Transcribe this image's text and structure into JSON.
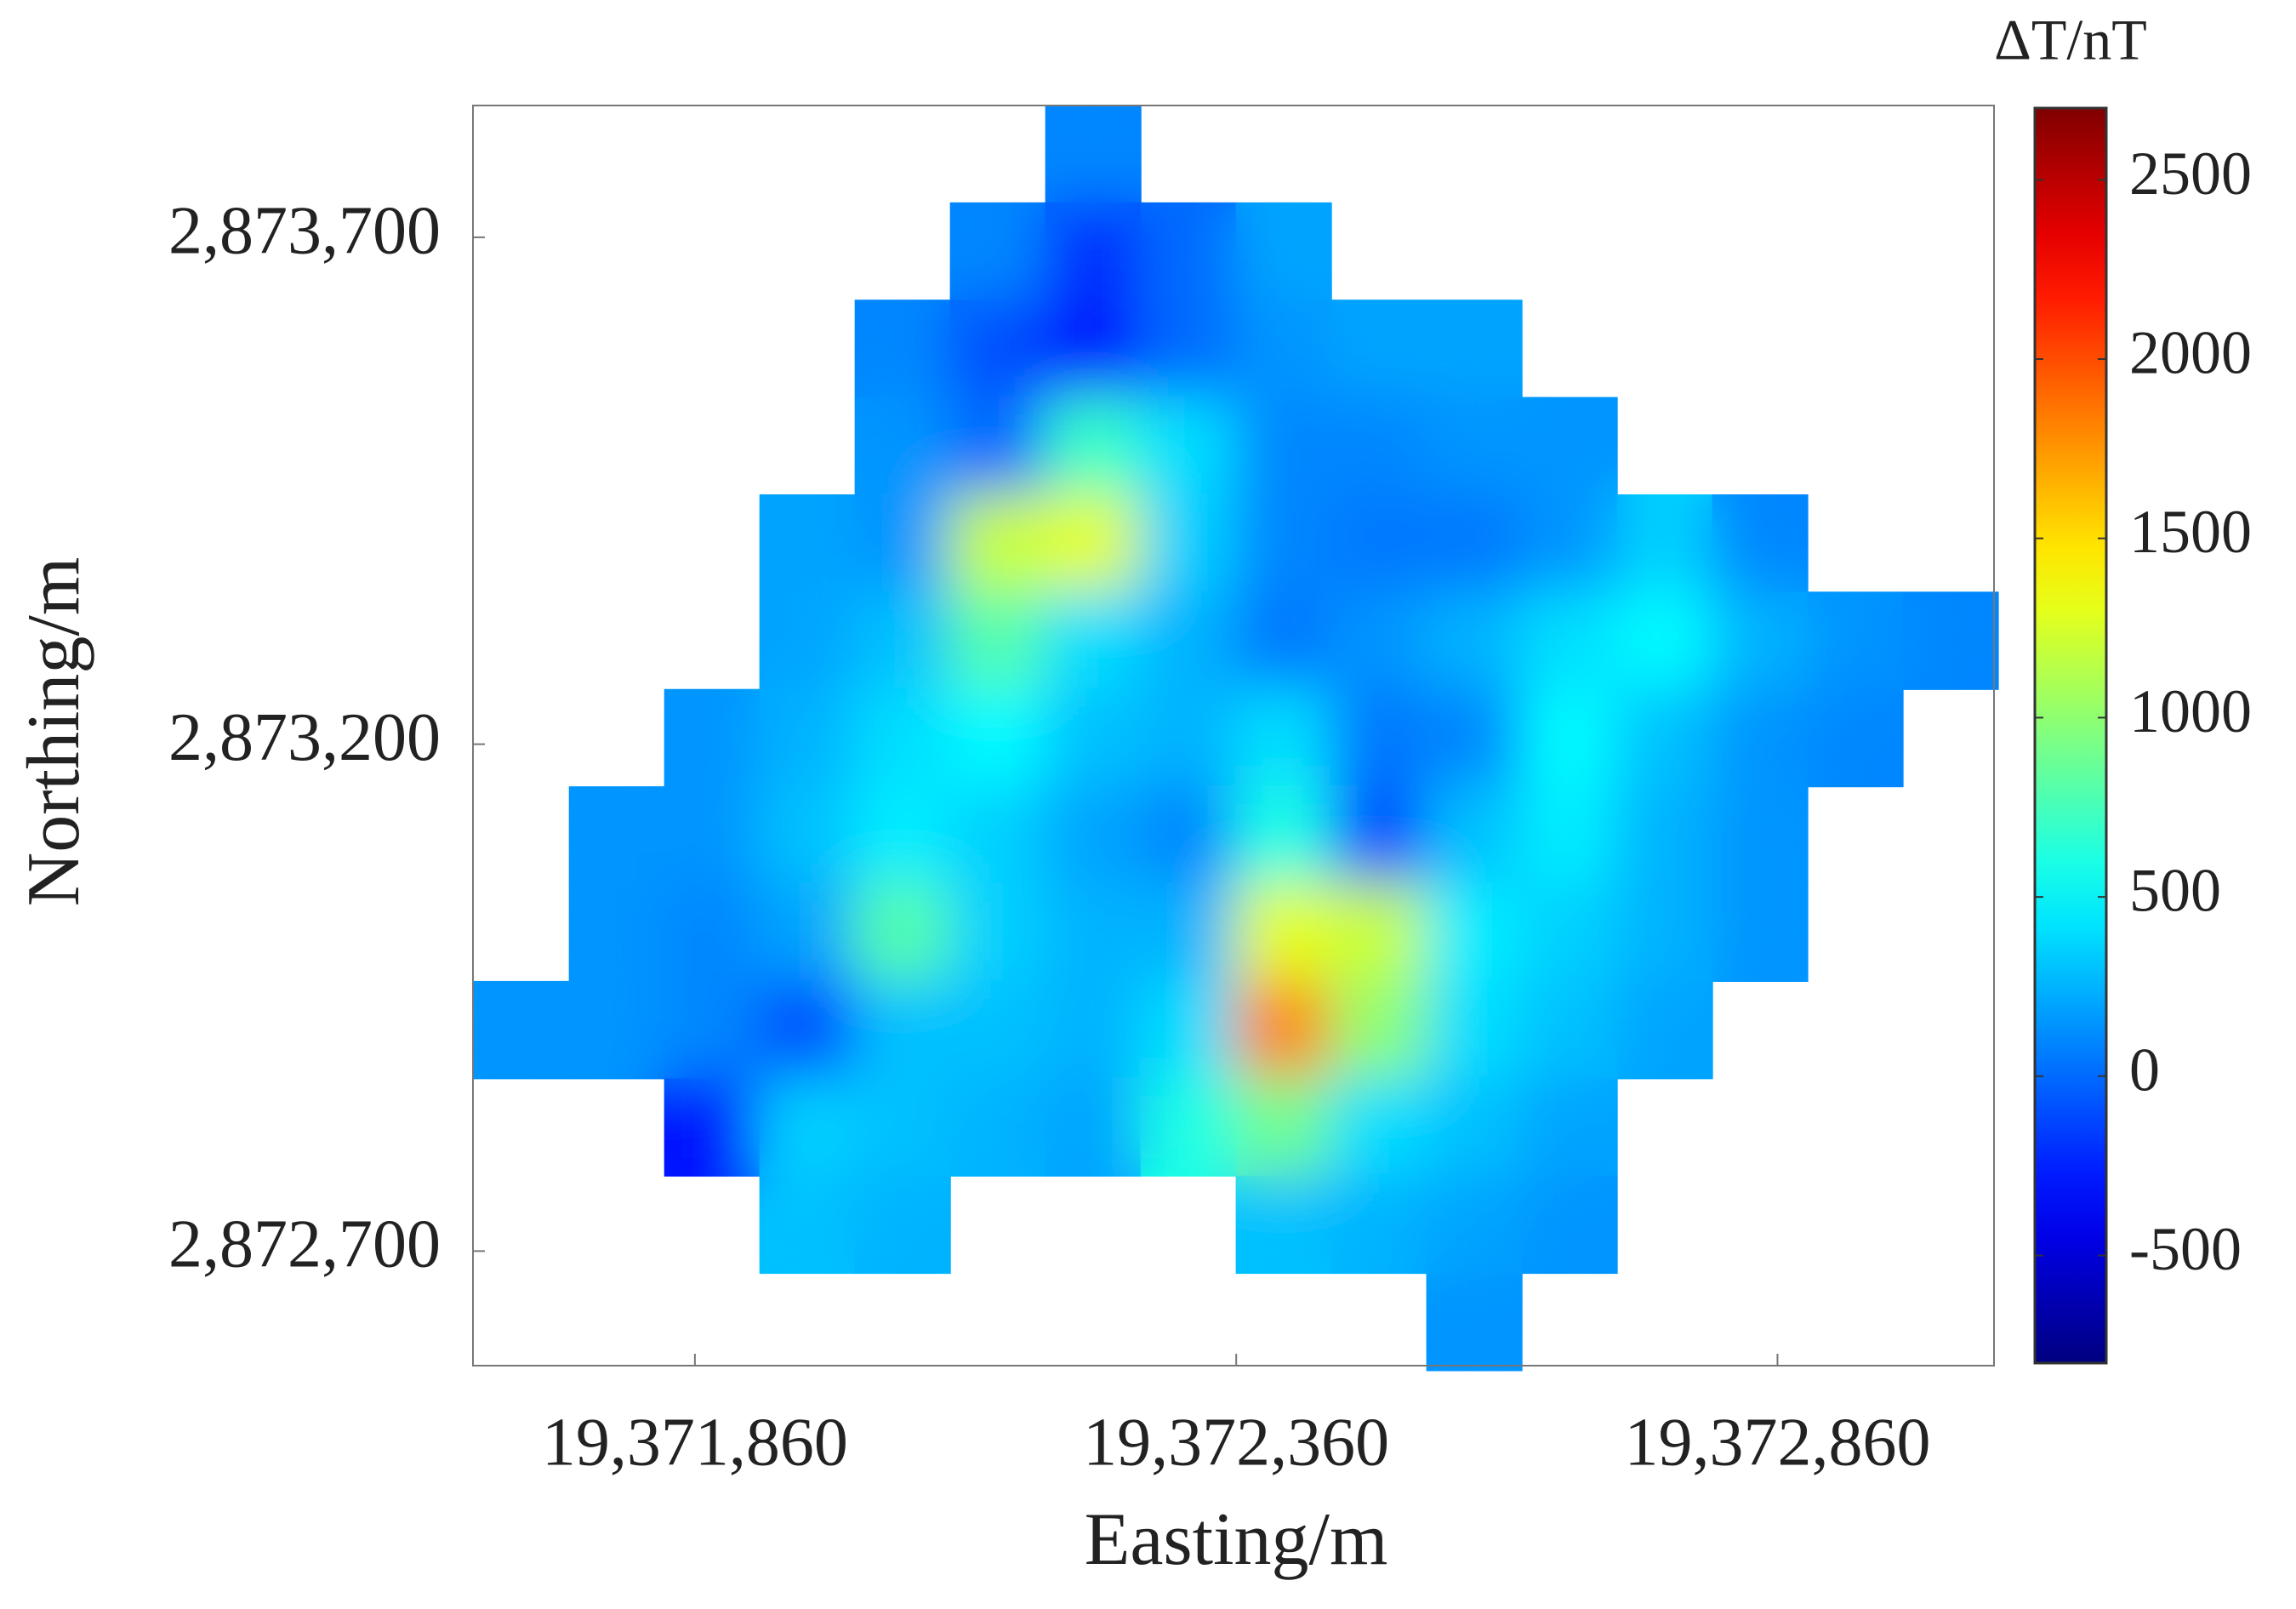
{
  "chart_data": {
    "type": "heatmap",
    "colormap": "jet",
    "x": [
      19371700,
      19371788,
      19371876,
      19371964,
      19372052,
      19372140,
      19372228,
      19372316,
      19372404,
      19372492,
      19372580,
      19372668,
      19372756,
      19372844,
      19372932,
      19373020
    ],
    "y": [
      2873782,
      2873686,
      2873590,
      2873494,
      2873398,
      2873302,
      2873206,
      2873110,
      2873014,
      2872918,
      2872822,
      2872726,
      2872630
    ],
    "z": [
      [
        null,
        null,
        null,
        null,
        null,
        null,
        100,
        null,
        null,
        null,
        null,
        null,
        null,
        null,
        null,
        null
      ],
      [
        null,
        null,
        null,
        null,
        null,
        100,
        -200,
        0,
        200,
        null,
        null,
        null,
        null,
        null,
        null,
        null
      ],
      [
        null,
        null,
        null,
        null,
        100,
        -100,
        -300,
        0,
        150,
        200,
        200,
        null,
        null,
        null,
        null,
        null
      ],
      [
        null,
        null,
        null,
        null,
        150,
        0,
        700,
        400,
        100,
        100,
        150,
        150,
        null,
        null,
        null,
        null
      ],
      [
        null,
        null,
        null,
        200,
        150,
        1200,
        1300,
        350,
        100,
        50,
        50,
        150,
        350,
        100,
        null,
        null
      ],
      [
        null,
        null,
        null,
        200,
        300,
        800,
        400,
        250,
        50,
        150,
        250,
        400,
        500,
        250,
        150,
        100
      ],
      [
        null,
        null,
        150,
        250,
        400,
        500,
        300,
        250,
        400,
        50,
        100,
        500,
        300,
        150,
        100,
        null
      ],
      [
        null,
        150,
        150,
        300,
        450,
        350,
        200,
        100,
        600,
        -100,
        300,
        450,
        250,
        150,
        null,
        null
      ],
      [
        null,
        150,
        100,
        200,
        800,
        350,
        250,
        250,
        1300,
        1200,
        450,
        350,
        250,
        150,
        null,
        null
      ],
      [
        150,
        150,
        100,
        -100,
        300,
        300,
        250,
        400,
        1800,
        1000,
        400,
        300,
        200,
        null,
        null,
        null
      ],
      [
        null,
        null,
        -300,
        350,
        300,
        250,
        200,
        600,
        900,
        400,
        300,
        200,
        null,
        null,
        null,
        null
      ],
      [
        null,
        null,
        null,
        300,
        250,
        null,
        null,
        null,
        300,
        250,
        200,
        150,
        null,
        null,
        null,
        null
      ],
      [
        null,
        null,
        null,
        null,
        null,
        null,
        null,
        null,
        null,
        null,
        150,
        null,
        null,
        null,
        null,
        null
      ]
    ],
    "xlim": [
      19371655,
      19373060
    ],
    "ylim": [
      2872587,
      2873830
    ],
    "xticks": [
      {
        "value": 19371860,
        "label": "19,371,860"
      },
      {
        "value": 19372360,
        "label": "19,372,360"
      },
      {
        "value": 19372860,
        "label": "19,372,860"
      }
    ],
    "yticks": [
      {
        "value": 2872700,
        "label": "2,872,700"
      },
      {
        "value": 2873200,
        "label": "2,873,200"
      },
      {
        "value": 2873700,
        "label": "2,873,700"
      }
    ],
    "xlabel": "Easting/m",
    "ylabel": "Northing/m",
    "colorbar_label": "ΔT/nT",
    "clim": [
      -800,
      2700
    ],
    "cticks": [
      -500,
      0,
      500,
      1000,
      1500,
      2000,
      2500
    ]
  }
}
